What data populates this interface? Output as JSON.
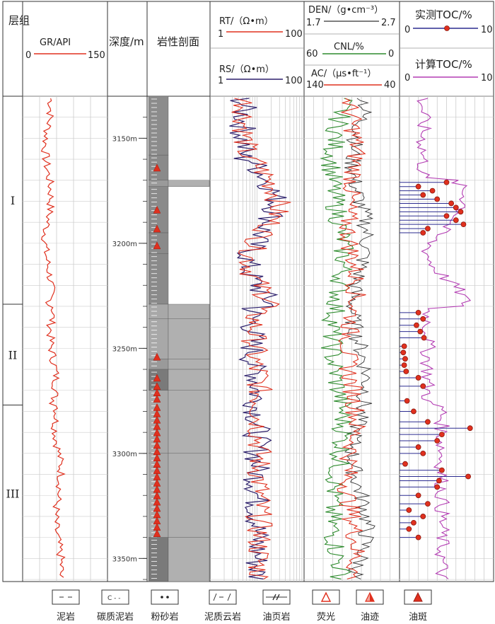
{
  "chart_data": {
    "type": "well-log",
    "depth_range": [
      3130,
      3361
    ],
    "depth_ticks": [
      "3150m",
      "3200m",
      "3250m",
      "3300m",
      "3350m"
    ],
    "columns": {
      "formation": {
        "title": "层组",
        "zones": [
          {
            "name": "I",
            "top": 3130,
            "bottom": 3229
          },
          {
            "name": "II",
            "top": 3229,
            "bottom": 3277
          },
          {
            "name": "III",
            "top": 3277,
            "bottom": 3361
          }
        ]
      },
      "gr": {
        "label": "GR/API",
        "min": "0",
        "max": "150",
        "color": "#e0301e"
      },
      "depth": {
        "title": "深度/m"
      },
      "lithology": {
        "title": "岩性剖面"
      },
      "resistivity": {
        "rt": {
          "label": "RT/（Ω•m）",
          "min": "1",
          "max": "100",
          "color": "#e0301e"
        },
        "rs": {
          "label": "RS/（Ω•m）",
          "min": "1",
          "max": "100",
          "color": "#2b1e6b"
        },
        "scale": "log"
      },
      "porosity": {
        "den": {
          "label": "DEN/（g•cm⁻³）",
          "min": "1.7",
          "max": "2.7",
          "color": "#333333"
        },
        "cnl": {
          "label": "CNL/%",
          "min": "60",
          "max": "0",
          "color": "#2e8b2e"
        },
        "ac": {
          "label": "AC/（μs•ft⁻¹）",
          "min": "140",
          "max": "40",
          "color": "#e0301e"
        }
      },
      "toc": {
        "measured": {
          "label": "实测TOC/%",
          "min": "0",
          "max": "10",
          "color": "#2b2b8f"
        },
        "calculated": {
          "label": "计算TOC/%",
          "min": "0",
          "max": "10",
          "color": "#b33cb3"
        }
      }
    },
    "lithology_intervals": [
      {
        "top": 3130,
        "bottom": 3158,
        "type": "mudstone"
      },
      {
        "top": 3158,
        "bottom": 3170,
        "type": "oil-shale"
      },
      {
        "top": 3170,
        "bottom": 3173,
        "type": "siltstone"
      },
      {
        "top": 3173,
        "bottom": 3195,
        "type": "oil-shale"
      },
      {
        "top": 3195,
        "bottom": 3205,
        "type": "oil-shale"
      },
      {
        "top": 3205,
        "bottom": 3229,
        "type": "oil-shale"
      },
      {
        "top": 3229,
        "bottom": 3236,
        "type": "dolomitic-mudstone"
      },
      {
        "top": 3236,
        "bottom": 3255,
        "type": "dolomitic-mudstone"
      },
      {
        "top": 3255,
        "bottom": 3260,
        "type": "siltstone"
      },
      {
        "top": 3260,
        "bottom": 3270,
        "type": "carbonaceous-mudstone"
      },
      {
        "top": 3270,
        "bottom": 3300,
        "type": "dolomitic-mudstone"
      },
      {
        "top": 3300,
        "bottom": 3340,
        "type": "dolomitic-mudstone"
      },
      {
        "top": 3340,
        "bottom": 3361,
        "type": "carbonaceous-mudstone"
      }
    ],
    "oil_show_marks": [
      {
        "depth": 3164,
        "kind": "oil-spot"
      },
      {
        "depth": 3184,
        "kind": "oil-trace"
      },
      {
        "depth": 3193,
        "kind": "oil-trace"
      },
      {
        "depth": 3201,
        "kind": "oil-trace"
      },
      {
        "depth": 3254,
        "kind": "oil-trace"
      },
      {
        "depth": 3264,
        "kind": "oil-spot"
      },
      {
        "depth": 3268,
        "kind": "oil-spot"
      },
      {
        "depth": 3271,
        "kind": "oil-spot"
      },
      {
        "depth": 3274,
        "kind": "oil-spot"
      },
      {
        "depth": 3278,
        "kind": "oil-spot"
      },
      {
        "depth": 3281,
        "kind": "oil-spot"
      },
      {
        "depth": 3284,
        "kind": "oil-spot"
      },
      {
        "depth": 3287,
        "kind": "oil-spot"
      },
      {
        "depth": 3290,
        "kind": "oil-spot"
      },
      {
        "depth": 3293,
        "kind": "oil-spot"
      },
      {
        "depth": 3296,
        "kind": "oil-spot"
      },
      {
        "depth": 3299,
        "kind": "oil-spot"
      },
      {
        "depth": 3302,
        "kind": "oil-spot"
      },
      {
        "depth": 3305,
        "kind": "oil-spot"
      },
      {
        "depth": 3308,
        "kind": "oil-spot"
      },
      {
        "depth": 3311,
        "kind": "oil-spot"
      },
      {
        "depth": 3314,
        "kind": "oil-spot"
      },
      {
        "depth": 3317,
        "kind": "oil-spot"
      },
      {
        "depth": 3320,
        "kind": "oil-spot"
      },
      {
        "depth": 3323,
        "kind": "oil-spot"
      },
      {
        "depth": 3326,
        "kind": "oil-spot"
      },
      {
        "depth": 3329,
        "kind": "oil-spot"
      },
      {
        "depth": 3332,
        "kind": "oil-spot"
      },
      {
        "depth": 3335,
        "kind": "oil-spot"
      },
      {
        "depth": 3338,
        "kind": "oil-spot"
      }
    ],
    "measured_toc_points": [
      {
        "depth": 3171,
        "toc": 5.0
      },
      {
        "depth": 3173,
        "toc": 2.0
      },
      {
        "depth": 3175,
        "toc": 3.5
      },
      {
        "depth": 3177,
        "toc": 2.5
      },
      {
        "depth": 3179,
        "toc": 4.0
      },
      {
        "depth": 3181,
        "toc": 5.5
      },
      {
        "depth": 3183,
        "toc": 6.0
      },
      {
        "depth": 3185,
        "toc": 6.5
      },
      {
        "depth": 3187,
        "toc": 5.0
      },
      {
        "depth": 3189,
        "toc": 6.0
      },
      {
        "depth": 3191,
        "toc": 6.8
      },
      {
        "depth": 3193,
        "toc": 3.0
      },
      {
        "depth": 3195,
        "toc": 2.5
      },
      {
        "depth": 3233,
        "toc": 2.0
      },
      {
        "depth": 3236,
        "toc": 2.5
      },
      {
        "depth": 3239,
        "toc": 1.8
      },
      {
        "depth": 3242,
        "toc": 2.2
      },
      {
        "depth": 3245,
        "toc": 2.6
      },
      {
        "depth": 3249,
        "toc": 0.5
      },
      {
        "depth": 3252,
        "toc": 0.4
      },
      {
        "depth": 3255,
        "toc": 0.6
      },
      {
        "depth": 3258,
        "toc": 0.5
      },
      {
        "depth": 3261,
        "toc": 0.7
      },
      {
        "depth": 3264,
        "toc": 2.0
      },
      {
        "depth": 3268,
        "toc": 2.5
      },
      {
        "depth": 3275,
        "toc": 0.8
      },
      {
        "depth": 3280,
        "toc": 1.5
      },
      {
        "depth": 3285,
        "toc": 3.0
      },
      {
        "depth": 3288,
        "toc": 7.5
      },
      {
        "depth": 3291,
        "toc": 4.5
      },
      {
        "depth": 3294,
        "toc": 4.0
      },
      {
        "depth": 3297,
        "toc": 2.0
      },
      {
        "depth": 3300,
        "toc": 2.5
      },
      {
        "depth": 3305,
        "toc": 0.6
      },
      {
        "depth": 3308,
        "toc": 4.5
      },
      {
        "depth": 3311,
        "toc": 7.3
      },
      {
        "depth": 3313,
        "toc": 4.2
      },
      {
        "depth": 3316,
        "toc": 4.0
      },
      {
        "depth": 3320,
        "toc": 2.0
      },
      {
        "depth": 3324,
        "toc": 3.0
      },
      {
        "depth": 3327,
        "toc": 1.0
      },
      {
        "depth": 3330,
        "toc": 2.5
      },
      {
        "depth": 3333,
        "toc": 1.5
      },
      {
        "depth": 3336,
        "toc": 1.0
      },
      {
        "depth": 3340,
        "toc": 2.0
      }
    ],
    "legend": [
      {
        "key": "mudstone",
        "label": "泥岩"
      },
      {
        "key": "carbonaceous-mudstone",
        "label": "碳质泥岩"
      },
      {
        "key": "siltstone",
        "label": "粉砂岩"
      },
      {
        "key": "dolomitic-mudstone",
        "label": "泥质云岩"
      },
      {
        "key": "oil-shale",
        "label": "油页岩"
      },
      {
        "key": "fluorescence",
        "label": "荧光"
      },
      {
        "key": "oil-trace",
        "label": "油迹"
      },
      {
        "key": "oil-spot",
        "label": "油斑"
      }
    ]
  }
}
